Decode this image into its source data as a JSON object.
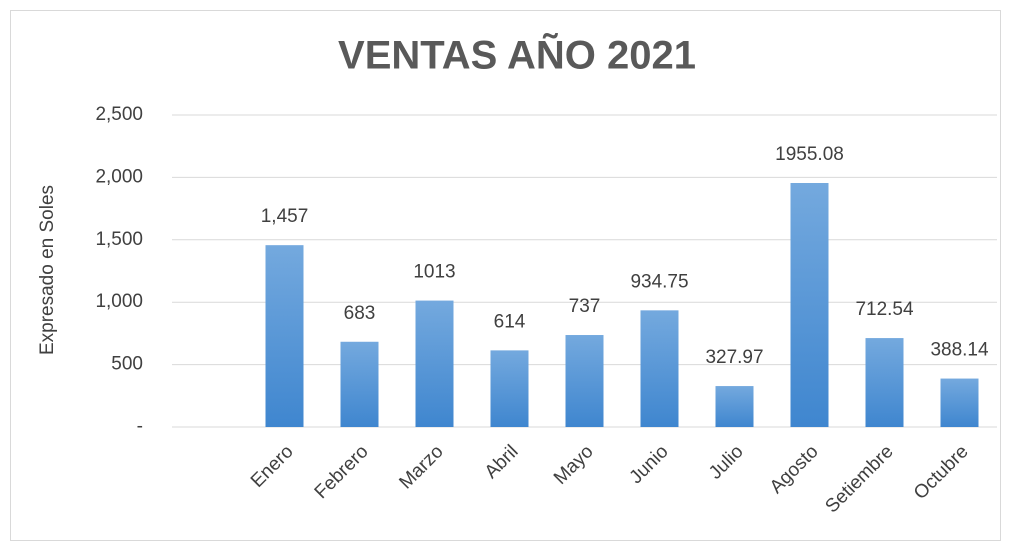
{
  "chart_data": {
    "type": "bar",
    "title": "VENTAS AÑO 2021",
    "y_label": "Expresado en Soles",
    "categories": [
      null,
      "Enero",
      "Febrero",
      "Marzo",
      "Abril",
      "Mayo",
      "Junio",
      "Julio",
      "Agosto",
      "Setiembre",
      "Octubre"
    ],
    "values": [
      null,
      1457,
      683,
      1013,
      614,
      737,
      934.75,
      327.97,
      1955.08,
      712.54,
      388.14
    ],
    "value_labels": [
      null,
      "1,457",
      "683",
      "1013",
      "614",
      "737",
      "934.75",
      "327.97",
      "1955.08",
      "712.54",
      "388.14"
    ],
    "color": "#5b9bd5",
    "ylim": [
      0,
      2500
    ],
    "yticks": [
      {
        "value": 0,
        "label": "-"
      },
      500,
      {
        "value": 1000,
        "label": "1,000"
      },
      {
        "value": 1500,
        "label": "1,500"
      },
      {
        "value": 2000,
        "label": "2,000"
      },
      {
        "value": 2500,
        "label": "2,500"
      }
    ],
    "grid": true
  }
}
